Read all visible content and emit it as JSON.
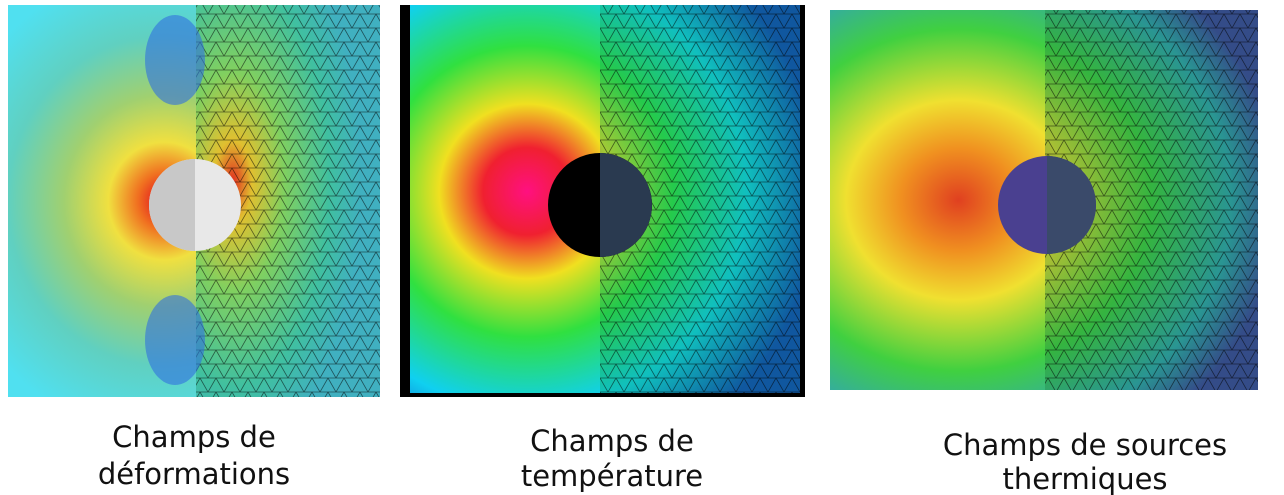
{
  "panels": [
    {
      "caption": [
        "Champs de",
        "déformations"
      ]
    },
    {
      "caption": [
        "Champs de",
        "température"
      ]
    },
    {
      "caption": [
        "Champs de sources",
        "thermiques"
      ]
    }
  ]
}
